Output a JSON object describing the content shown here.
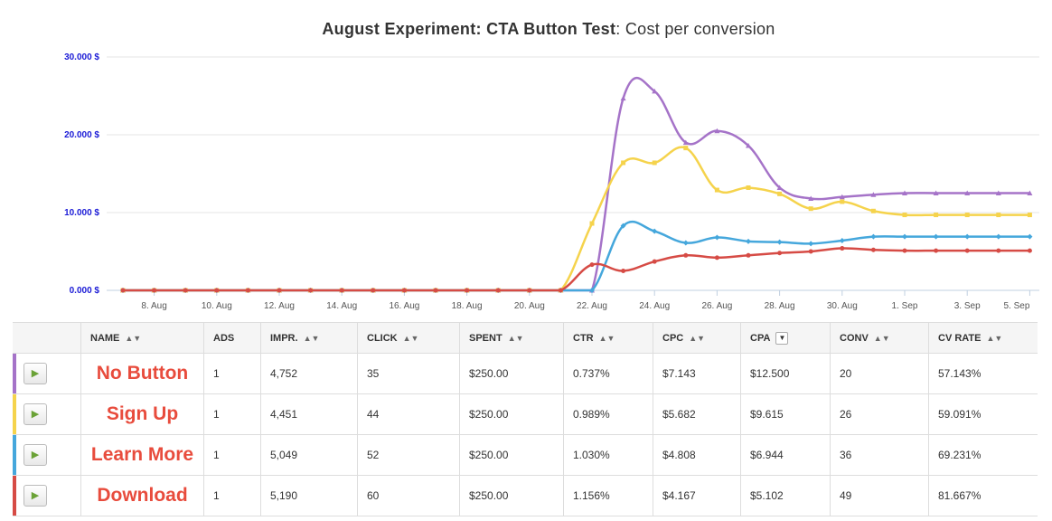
{
  "chart_data": {
    "type": "line",
    "title_bold": "August Experiment: CTA Button Test",
    "title_rest": ": Cost per conversion",
    "y_ticks": [
      "0.000 $",
      "10.000 $",
      "20.000 $",
      "30.000 $"
    ],
    "ylim": [
      0,
      30000
    ],
    "x_ticks": [
      "8. Aug",
      "10. Aug",
      "12. Aug",
      "14. Aug",
      "16. Aug",
      "18. Aug",
      "20. Aug",
      "22. Aug",
      "24. Aug",
      "26. Aug",
      "28. Aug",
      "30. Aug",
      "1. Sep",
      "3. Sep",
      "5. Sep"
    ],
    "x": [
      "7 Aug",
      "8 Aug",
      "9 Aug",
      "10 Aug",
      "11 Aug",
      "12 Aug",
      "13 Aug",
      "14 Aug",
      "15 Aug",
      "16 Aug",
      "17 Aug",
      "18 Aug",
      "19 Aug",
      "20 Aug",
      "21 Aug",
      "22 Aug",
      "23 Aug",
      "24 Aug",
      "25 Aug",
      "26 Aug",
      "27 Aug",
      "28 Aug",
      "29 Aug",
      "30 Aug",
      "31 Aug",
      "1 Sep",
      "2 Sep",
      "3 Sep",
      "4 Sep",
      "5 Sep"
    ],
    "series": [
      {
        "color": "#a573c8",
        "marker": "triangle",
        "values": [
          0,
          0,
          0,
          0,
          0,
          0,
          0,
          0,
          0,
          0,
          0,
          0,
          0,
          0,
          0,
          0,
          24700,
          25600,
          19000,
          20500,
          18600,
          13200,
          11800,
          12000,
          12300,
          12500,
          12500,
          12500,
          12500,
          12500
        ]
      },
      {
        "color": "#f5d34c",
        "marker": "square",
        "values": [
          0,
          0,
          0,
          0,
          0,
          0,
          0,
          0,
          0,
          0,
          0,
          0,
          0,
          0,
          0,
          8600,
          16400,
          16400,
          18300,
          12900,
          13200,
          12400,
          10500,
          11400,
          10200,
          9700,
          9700,
          9700,
          9700,
          9700
        ]
      },
      {
        "color": "#45a7dc",
        "marker": "diamond",
        "values": [
          0,
          0,
          0,
          0,
          0,
          0,
          0,
          0,
          0,
          0,
          0,
          0,
          0,
          0,
          0,
          0,
          8300,
          7600,
          6100,
          6800,
          6300,
          6200,
          6000,
          6400,
          6900,
          6900,
          6900,
          6900,
          6900,
          6900
        ]
      },
      {
        "color": "#d64b45",
        "marker": "circle",
        "values": [
          0,
          0,
          0,
          0,
          0,
          0,
          0,
          0,
          0,
          0,
          0,
          0,
          0,
          0,
          0,
          3300,
          2500,
          3700,
          4500,
          4200,
          4500,
          4800,
          5000,
          5400,
          5200,
          5100,
          5100,
          5100,
          5100,
          5100
        ]
      }
    ]
  },
  "table": {
    "headers": {
      "name": "NAME",
      "ads": "ADS",
      "impr": "IMPR.",
      "click": "CLICK",
      "spent": "SPENT",
      "ctr": "CTR",
      "cpc": "CPC",
      "cpa": "CPA",
      "conv": "CONV",
      "cvrate": "CV RATE"
    },
    "rows": [
      {
        "color": "#a573c8",
        "name": "No Button",
        "ads": "1",
        "impr": "4,752",
        "click": "35",
        "spent": "$250.00",
        "ctr": "0.737%",
        "cpc": "$7.143",
        "cpa": "$12.500",
        "conv": "20",
        "cvrate": "57.143%"
      },
      {
        "color": "#f5d34c",
        "name": "Sign Up",
        "ads": "1",
        "impr": "4,451",
        "click": "44",
        "spent": "$250.00",
        "ctr": "0.989%",
        "cpc": "$5.682",
        "cpa": "$9.615",
        "conv": "26",
        "cvrate": "59.091%"
      },
      {
        "color": "#45a7dc",
        "name": "Learn More",
        "ads": "1",
        "impr": "5,049",
        "click": "52",
        "spent": "$250.00",
        "ctr": "1.030%",
        "cpc": "$4.808",
        "cpa": "$6.944",
        "conv": "36",
        "cvrate": "69.231%"
      },
      {
        "color": "#d64b45",
        "name": "Download",
        "ads": "1",
        "impr": "5,190",
        "click": "60",
        "spent": "$250.00",
        "ctr": "1.156%",
        "cpc": "$4.167",
        "cpa": "$5.102",
        "conv": "49",
        "cvrate": "81.667%"
      }
    ]
  }
}
